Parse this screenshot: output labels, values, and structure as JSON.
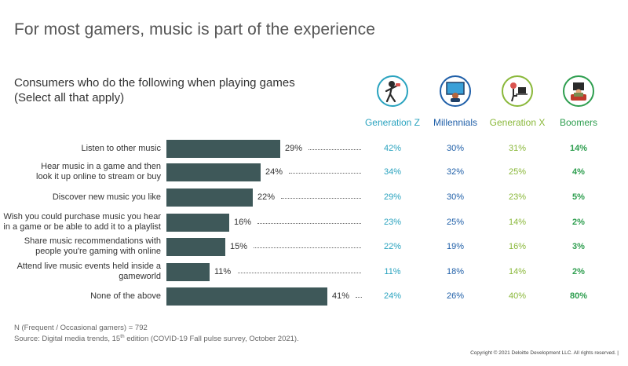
{
  "title": "For most gamers, music is part of the experience",
  "subtitle_line1": "Consumers who do the following when playing games",
  "subtitle_line2": "(Select all that apply)",
  "colors": {
    "bar": "#3e5859",
    "generation_z": "#2aa3bf",
    "millennials": "#1f5fa8",
    "generation_x": "#8ab83a",
    "boomers": "#2e9e4f"
  },
  "generations": [
    {
      "name": "Generation Z",
      "icon": "gamer-dancing-icon",
      "color": "#2aa3bf"
    },
    {
      "name": "Millennials",
      "icon": "gamer-at-screen-icon",
      "color": "#1f5fa8"
    },
    {
      "name": "Generation X",
      "icon": "gamer-at-desk-icon",
      "color": "#8ab83a"
    },
    {
      "name": "Boomers",
      "icon": "gamer-on-couch-icon",
      "color": "#2e9e4f"
    }
  ],
  "chart_data": {
    "type": "bar",
    "orientation": "horizontal",
    "categories": [
      [
        "Listen to other music"
      ],
      [
        "Hear music in a game and then",
        "look it up online to stream or buy"
      ],
      [
        "Discover new music you like"
      ],
      [
        "Wish you could purchase music you hear",
        "in a game or be able to add it to a playlist"
      ],
      [
        "Share music recommendations with",
        "people you're gaming with online"
      ],
      [
        "Attend live music events held inside a",
        "gameworld"
      ],
      [
        "None of the above"
      ]
    ],
    "values": [
      29,
      24,
      22,
      16,
      15,
      11,
      41
    ],
    "value_labels": [
      "29%",
      "24%",
      "22%",
      "16%",
      "15%",
      "11%",
      "41%"
    ],
    "series": [
      {
        "name": "Generation Z",
        "values": [
          "42%",
          "34%",
          "29%",
          "23%",
          "22%",
          "11%",
          "24%"
        ]
      },
      {
        "name": "Millennials",
        "values": [
          "30%",
          "32%",
          "30%",
          "25%",
          "19%",
          "18%",
          "26%"
        ]
      },
      {
        "name": "Generation X",
        "values": [
          "31%",
          "25%",
          "23%",
          "14%",
          "16%",
          "14%",
          "40%"
        ]
      },
      {
        "name": "Boomers",
        "values": [
          "14%",
          "4%",
          "5%",
          "2%",
          "3%",
          "2%",
          "80%"
        ]
      }
    ],
    "xlim": [
      0,
      41
    ]
  },
  "footnote1": "N (Frequent / Occasional gamers) = 792",
  "footnote2_pre": "Source: Digital media trends, 15",
  "footnote2_sup": "th",
  "footnote2_post": " edition (COVID-19 Fall pulse survey, October 2021).",
  "copyright": "Copyright © 2021 Deloitte Development LLC. All rights reserved.   |"
}
